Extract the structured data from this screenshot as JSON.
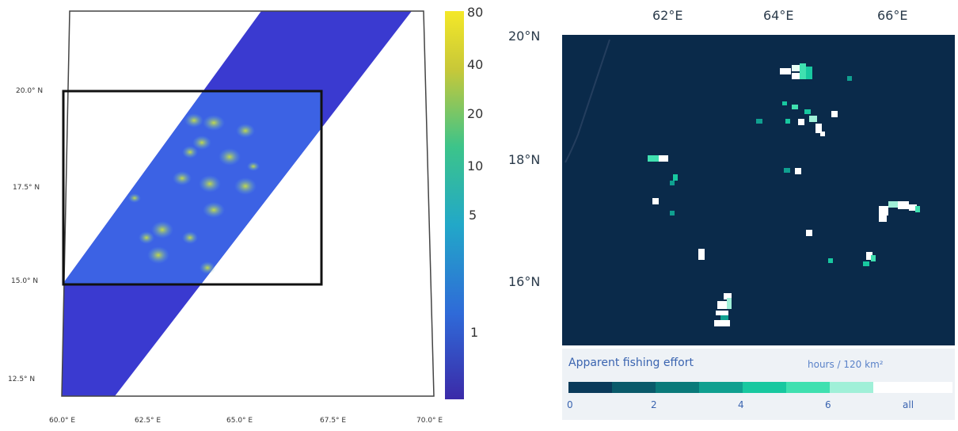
{
  "left_map": {
    "lat_labels": [
      "20.0° N",
      "17.5° N",
      "15.0° N",
      "12.5° N"
    ],
    "lon_labels": [
      "60.0° E",
      "62.5° E",
      "65.0° E",
      "67.5° E",
      "70.0° E"
    ],
    "colorbar": {
      "ticks": [
        "80",
        "40",
        "20",
        "10",
        "5",
        "1"
      ],
      "colors": [
        "#3b2aa8",
        "#2f6ad8",
        "#22a8c8",
        "#3cc48a",
        "#c8c838",
        "#f4e828"
      ]
    },
    "swath_color": "#3a3ad0",
    "inner_color": "#3a62e0",
    "hotspot_color": "#a8d848"
  },
  "right_map": {
    "lon_labels": [
      "62°E",
      "64°E",
      "66°E"
    ],
    "lat_labels": [
      "20°N",
      "18°N",
      "16°N"
    ],
    "background_color": "#0a2a4a",
    "legend": {
      "title": "Apparent fishing effort",
      "unit": "hours / 120 km²",
      "ticks": [
        "0",
        "2",
        "4",
        "6",
        "all"
      ],
      "colors": [
        "#0a3a5a",
        "#0a5a6a",
        "#0a7a7a",
        "#10a090",
        "#18c8a0",
        "#40e0b0",
        "#a0f0d8",
        "#ffffff"
      ]
    }
  }
}
